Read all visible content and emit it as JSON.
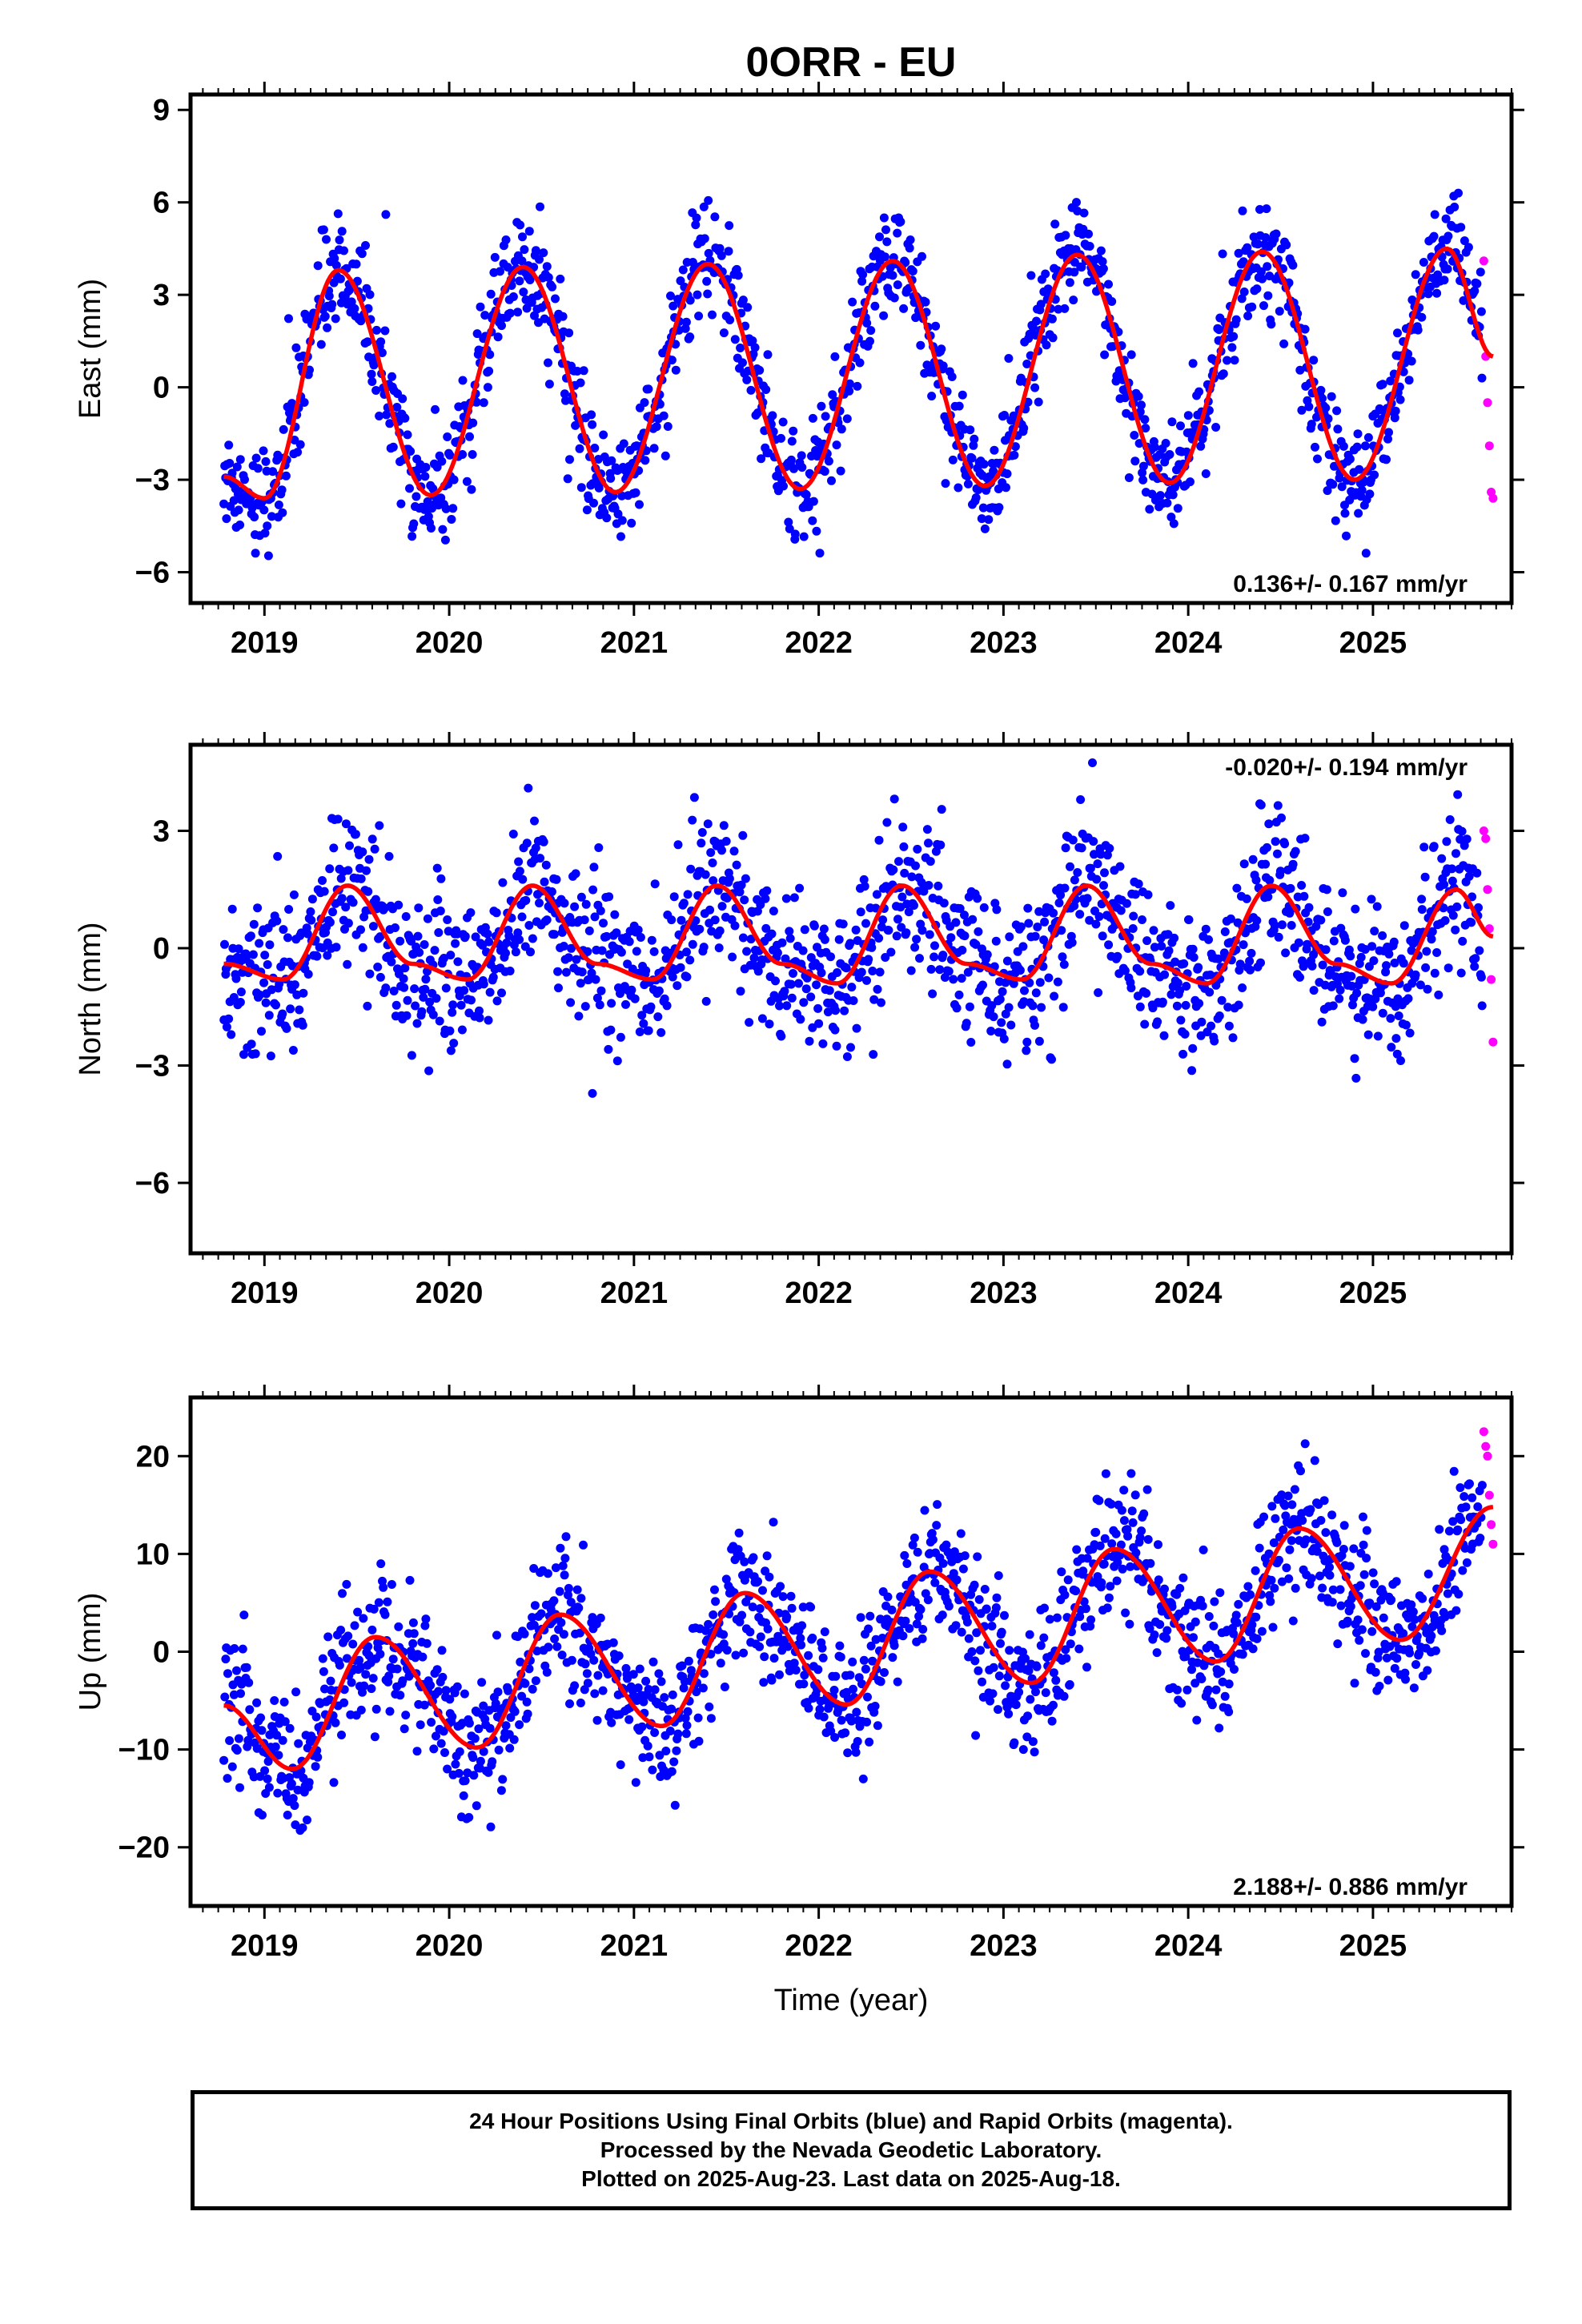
{
  "title": "0ORR - EU",
  "xlabel": "Time (year)",
  "footer": {
    "line1": "24 Hour Positions Using Final Orbits (blue) and Rapid Orbits (magenta).",
    "line2": "Processed by the Nevada Geodetic Laboratory.",
    "line3": "Plotted on 2025-Aug-23. Last data on 2025-Aug-18."
  },
  "colors": {
    "final": "#0000ff",
    "rapid": "#ff00ff",
    "model": "#ff0000"
  },
  "chart_data": [
    {
      "type": "scatter",
      "ylabel": "East (mm)",
      "xlim": [
        2018.6,
        2025.75
      ],
      "ylim": [
        -7,
        9.5
      ],
      "yticks": [
        -6,
        -3,
        0,
        3,
        6,
        9
      ],
      "xticks": [
        2019,
        2020,
        2021,
        2022,
        2023,
        2024,
        2025
      ],
      "rate": "0.136+/- 0.167 mm/yr",
      "rate_position": "bottom-right",
      "series": [
        {
          "role": "final",
          "x_range": [
            2018.78,
            2025.59
          ],
          "approx_trend": [
            0.0,
            0.136
          ],
          "annual_amplitude": 3.6,
          "noise": 0.85
        },
        {
          "role": "rapid",
          "x": [
            2025.6,
            2025.61,
            2025.62,
            2025.63,
            2025.64,
            2025.65
          ],
          "y": [
            4.1,
            1.0,
            -0.5,
            -1.9,
            -3.4,
            -3.6
          ]
        },
        {
          "role": "model",
          "x": [
            2018.78,
            2019.0,
            2019.4,
            2019.9,
            2020.4,
            2020.9,
            2021.4,
            2021.9,
            2022.4,
            2022.9,
            2023.4,
            2023.9,
            2024.4,
            2024.9,
            2025.4,
            2025.65
          ],
          "y": [
            -2.9,
            -3.6,
            3.8,
            -3.5,
            3.9,
            -3.4,
            4.0,
            -3.3,
            4.1,
            -3.2,
            4.3,
            -3.1,
            4.4,
            -3.0,
            4.5,
            1.0
          ]
        }
      ]
    },
    {
      "type": "scatter",
      "ylabel": "North (mm)",
      "xlim": [
        2018.6,
        2025.75
      ],
      "ylim": [
        -7.8,
        5.2
      ],
      "yticks": [
        -6,
        -3,
        0,
        3
      ],
      "xticks": [
        2019,
        2020,
        2021,
        2022,
        2023,
        2024,
        2025
      ],
      "rate": "-0.020+/- 0.194 mm/yr",
      "rate_position": "top-right",
      "series": [
        {
          "role": "final",
          "x_range": [
            2018.78,
            2025.59
          ],
          "approx_trend": [
            0.0,
            -0.02
          ],
          "noise": 1.0
        },
        {
          "role": "rapid",
          "x": [
            2025.6,
            2025.61,
            2025.62,
            2025.63,
            2025.64,
            2025.65
          ],
          "y": [
            3.0,
            2.8,
            1.5,
            0.5,
            -0.8,
            -2.4
          ]
        },
        {
          "role": "model",
          "x": [
            2018.78,
            2019.1,
            2019.45,
            2019.8,
            2020.1,
            2020.45,
            2020.8,
            2021.1,
            2021.45,
            2021.8,
            2022.1,
            2022.45,
            2022.8,
            2023.1,
            2023.45,
            2023.8,
            2024.1,
            2024.45,
            2024.8,
            2025.1,
            2025.45,
            2025.65
          ],
          "y": [
            -0.4,
            -0.8,
            1.6,
            -0.4,
            -0.8,
            1.6,
            -0.4,
            -0.8,
            1.6,
            -0.4,
            -0.9,
            1.6,
            -0.4,
            -0.8,
            1.6,
            -0.4,
            -0.9,
            1.6,
            -0.4,
            -0.9,
            1.5,
            0.3
          ]
        }
      ]
    },
    {
      "type": "scatter",
      "ylabel": "Up (mm)",
      "xlim": [
        2018.6,
        2025.75
      ],
      "ylim": [
        -26,
        26
      ],
      "yticks": [
        -20,
        -10,
        0,
        10,
        20
      ],
      "xticks": [
        2019,
        2020,
        2021,
        2022,
        2023,
        2024,
        2025
      ],
      "rate": "2.188+/- 0.886 mm/yr",
      "rate_position": "bottom-right",
      "series": [
        {
          "role": "final",
          "x_range": [
            2018.78,
            2025.59
          ],
          "approx_trend": [
            -5.0,
            2.188
          ],
          "annual_amplitude": 7.0,
          "noise": 3.5
        },
        {
          "role": "rapid",
          "x": [
            2025.6,
            2025.61,
            2025.62,
            2025.63,
            2025.64,
            2025.65
          ],
          "y": [
            22.5,
            21.0,
            20.0,
            16.0,
            13.0,
            11.0
          ]
        },
        {
          "role": "model",
          "x": [
            2018.78,
            2019.15,
            2019.6,
            2020.15,
            2020.6,
            2021.15,
            2021.6,
            2022.15,
            2022.6,
            2023.15,
            2023.6,
            2024.15,
            2024.6,
            2025.15,
            2025.65
          ],
          "y": [
            -5.5,
            -12.0,
            1.5,
            -9.8,
            3.8,
            -7.6,
            6.0,
            -5.4,
            8.2,
            -3.2,
            10.5,
            -1.0,
            12.6,
            1.2,
            14.8
          ]
        }
      ]
    }
  ]
}
